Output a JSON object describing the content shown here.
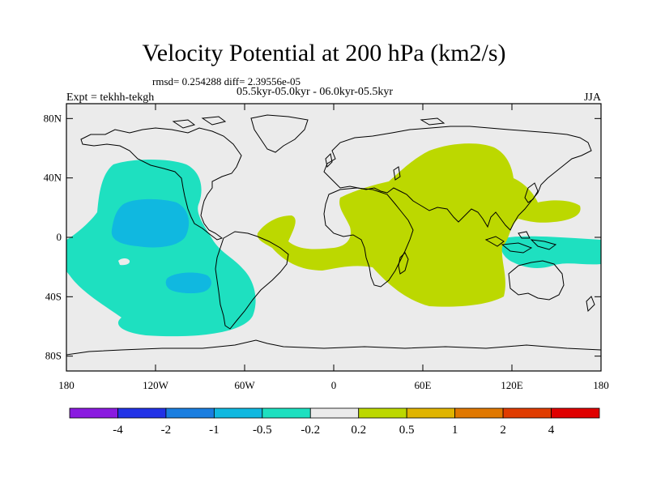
{
  "header": {
    "title": "Velocity Potential at 200 hPa (km2/s)",
    "stats": "rmsd= 0.254288 diff= 2.39556e-05",
    "period": "05.5kyr-05.0kyr - 06.0kyr-05.5kyr",
    "expt": "Expt = tekhh-tekgh",
    "season": "JJA"
  },
  "map": {
    "projection": "cylindrical-equidistant",
    "lon_range": [
      -180,
      180
    ],
    "lat_range": [
      -90,
      90
    ],
    "ocean_color": "#ebebeb",
    "coast_color": "#000000",
    "y_ticks": [
      {
        "lat": 80,
        "label": "80N"
      },
      {
        "lat": 40,
        "label": "40N"
      },
      {
        "lat": 0,
        "label": "0"
      },
      {
        "lat": -40,
        "label": "40S"
      },
      {
        "lat": -80,
        "label": "80S"
      }
    ],
    "x_ticks": [
      {
        "lon": -180,
        "label": "180"
      },
      {
        "lon": -120,
        "label": "120W"
      },
      {
        "lon": -60,
        "label": "60W"
      },
      {
        "lon": 0,
        "label": "0"
      },
      {
        "lon": 60,
        "label": "60E"
      },
      {
        "lon": 120,
        "label": "120E"
      },
      {
        "lon": 180,
        "label": "180"
      }
    ]
  },
  "colorbar": {
    "colors": [
      "#8a1ae0",
      "#2232e6",
      "#1a7ee0",
      "#10b8e0",
      "#1ee0c0",
      "#ebebeb",
      "#bcd800",
      "#e0b400",
      "#e07800",
      "#e03c00",
      "#e00000"
    ],
    "labels": [
      "-4",
      "-2",
      "-1",
      "-0.5",
      "-0.2",
      "0.2",
      "0.5",
      "1",
      "2",
      "4"
    ]
  }
}
